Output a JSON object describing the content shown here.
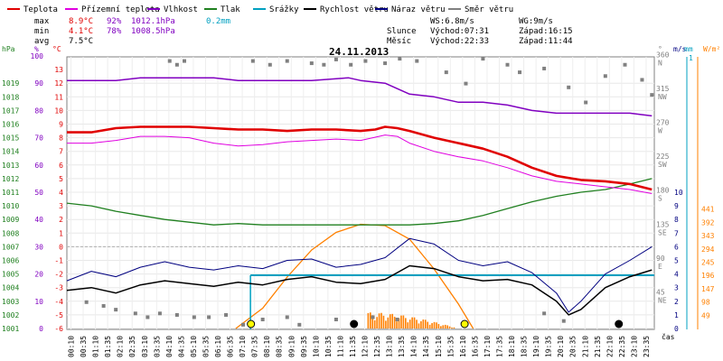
{
  "chart_data": {
    "type": "line",
    "title": "24.11.2013",
    "legend": [
      {
        "label": "Teplota",
        "color": "#e00000"
      },
      {
        "label": "Přízemní teplota",
        "color": "#e000e0"
      },
      {
        "label": "Vlhkost",
        "color": "#8000c0"
      },
      {
        "label": "Tlak",
        "color": "#208020"
      },
      {
        "label": "Srážky",
        "color": "#00a0c0"
      },
      {
        "label": "Rychlost větru",
        "color": "#000000"
      },
      {
        "label": "Náraz větru",
        "color": "#000080"
      },
      {
        "label": "Směr větru",
        "color": "#808080"
      }
    ],
    "stats": {
      "max": {
        "label": "max",
        "temp": "8.9°C",
        "hum": "92%",
        "press": "1012.1hPa",
        "rain": "0.2mm"
      },
      "min": {
        "label": "min",
        "temp": "4.1°C",
        "hum": "78%",
        "press": "1008.5hPa"
      },
      "avg": {
        "label": "avg",
        "temp": "7.5°C"
      }
    },
    "info": {
      "ws": "WS:6.8m/s",
      "wg": "WG:9m/s",
      "sun_label": "Slunce",
      "sunrise": "Východ:07:31",
      "sunset": "Západ:16:15",
      "moon_label": "Měsíc",
      "moonrise": "Východ:22:33",
      "moonset": "Západ:11:44"
    },
    "axes": {
      "hpa_unit": "hPa",
      "hpa_ticks": [
        1019,
        1018,
        1017,
        1016,
        1015,
        1014,
        1013,
        1012,
        1011,
        1010,
        1009,
        1008,
        1007,
        1006,
        1005,
        1004,
        1003,
        1002,
        1001
      ],
      "hum_unit": "%",
      "hum_ticks": [
        100,
        90,
        80,
        70,
        60,
        50,
        40,
        30,
        20,
        10,
        0
      ],
      "temp_unit": "°C",
      "temp_ticks": [
        13,
        12,
        11,
        10,
        9,
        8,
        7,
        6,
        5,
        4,
        3,
        2,
        1,
        0,
        -1,
        -2,
        -3,
        -4,
        -5,
        -6
      ],
      "dir_unit": "°",
      "dir_ticks": [
        {
          "deg": "360",
          "dir": "N"
        },
        {
          "deg": "315",
          "dir": "NW"
        },
        {
          "deg": "270",
          "dir": "W"
        },
        {
          "deg": "225",
          "dir": "SW"
        },
        {
          "deg": "180",
          "dir": "S"
        },
        {
          "deg": "135",
          "dir": "SE"
        },
        {
          "deg": "90",
          "dir": "E"
        },
        {
          "deg": "45",
          "dir": "NE"
        }
      ],
      "ms_unit": "m/s",
      "ms_ticks": [
        10,
        9,
        8,
        7,
        6,
        5,
        4,
        3,
        2,
        1,
        0
      ],
      "mm_unit": "mm",
      "mm_ticks": [
        "1"
      ],
      "wm2_unit": "W/m²",
      "wm2_ticks": [
        441,
        392,
        343,
        294,
        245,
        196,
        147,
        98,
        49
      ],
      "x_unit": "čas",
      "x_ticks": [
        "00:10",
        "00:35",
        "01:10",
        "01:35",
        "02:10",
        "02:35",
        "03:10",
        "03:35",
        "04:10",
        "04:35",
        "05:10",
        "05:35",
        "06:10",
        "06:35",
        "07:10",
        "07:35",
        "08:10",
        "08:35",
        "09:10",
        "09:35",
        "10:10",
        "10:35",
        "11:10",
        "11:35",
        "12:10",
        "12:35",
        "13:10",
        "13:35",
        "14:10",
        "14:35",
        "15:10",
        "15:35",
        "16:10",
        "16:35",
        "17:10",
        "17:35",
        "18:10",
        "18:35",
        "19:10",
        "19:35",
        "20:10",
        "20:35",
        "21:10",
        "21:35",
        "22:10",
        "22:35",
        "23:10",
        "23:35"
      ]
    },
    "series_pts": {
      "temperature": [
        [
          0,
          8.4
        ],
        [
          1,
          8.4
        ],
        [
          2,
          8.7
        ],
        [
          3,
          8.8
        ],
        [
          4,
          8.8
        ],
        [
          5,
          8.8
        ],
        [
          6,
          8.7
        ],
        [
          7,
          8.6
        ],
        [
          8,
          8.6
        ],
        [
          9,
          8.5
        ],
        [
          10,
          8.6
        ],
        [
          11,
          8.6
        ],
        [
          12,
          8.5
        ],
        [
          12.6,
          8.6
        ],
        [
          13,
          8.8
        ],
        [
          13.5,
          8.7
        ],
        [
          14,
          8.5
        ],
        [
          15,
          8.0
        ],
        [
          16,
          7.6
        ],
        [
          17,
          7.2
        ],
        [
          18,
          6.6
        ],
        [
          19,
          5.8
        ],
        [
          20,
          5.2
        ],
        [
          21,
          4.9
        ],
        [
          22,
          4.8
        ],
        [
          23,
          4.6
        ],
        [
          23.9,
          4.2
        ]
      ],
      "ground_temp": [
        [
          0,
          7.6
        ],
        [
          1,
          7.6
        ],
        [
          2,
          7.8
        ],
        [
          3,
          8.1
        ],
        [
          4,
          8.1
        ],
        [
          5,
          8.0
        ],
        [
          6,
          7.6
        ],
        [
          7,
          7.4
        ],
        [
          8,
          7.5
        ],
        [
          9,
          7.7
        ],
        [
          10,
          7.8
        ],
        [
          11,
          7.9
        ],
        [
          12,
          7.8
        ],
        [
          13,
          8.2
        ],
        [
          13.5,
          8.1
        ],
        [
          14,
          7.6
        ],
        [
          15,
          7.0
        ],
        [
          16,
          6.6
        ],
        [
          17,
          6.3
        ],
        [
          18,
          5.8
        ],
        [
          19,
          5.2
        ],
        [
          20,
          4.8
        ],
        [
          21,
          4.6
        ],
        [
          22,
          4.4
        ],
        [
          23,
          4.2
        ],
        [
          23.9,
          3.9
        ]
      ],
      "humidity": [
        [
          0,
          91
        ],
        [
          2,
          91
        ],
        [
          3,
          92
        ],
        [
          6,
          92
        ],
        [
          7,
          91
        ],
        [
          9,
          91
        ],
        [
          10,
          91
        ],
        [
          11.5,
          92
        ],
        [
          12,
          91
        ],
        [
          13,
          90
        ],
        [
          14,
          86
        ],
        [
          15,
          85
        ],
        [
          16,
          83
        ],
        [
          17,
          83
        ],
        [
          18,
          82
        ],
        [
          19,
          80
        ],
        [
          20,
          79
        ],
        [
          21,
          79
        ],
        [
          22,
          79
        ],
        [
          23,
          79
        ],
        [
          23.9,
          78
        ]
      ],
      "pressure": [
        [
          0,
          1010.2
        ],
        [
          1,
          1010.0
        ],
        [
          2,
          1009.6
        ],
        [
          3,
          1009.3
        ],
        [
          4,
          1009.0
        ],
        [
          5,
          1008.8
        ],
        [
          6,
          1008.6
        ],
        [
          7,
          1008.7
        ],
        [
          8,
          1008.6
        ],
        [
          9,
          1008.6
        ],
        [
          10,
          1008.6
        ],
        [
          11,
          1008.6
        ],
        [
          12,
          1008.6
        ],
        [
          13,
          1008.6
        ],
        [
          14,
          1008.6
        ],
        [
          15,
          1008.7
        ],
        [
          16,
          1008.9
        ],
        [
          17,
          1009.3
        ],
        [
          18,
          1009.8
        ],
        [
          19,
          1010.3
        ],
        [
          20,
          1010.7
        ],
        [
          21,
          1011.0
        ],
        [
          22,
          1011.2
        ],
        [
          23,
          1011.6
        ],
        [
          23.9,
          1012.0
        ]
      ],
      "rain_total": [
        [
          0,
          0
        ],
        [
          7.5,
          0
        ],
        [
          7.5,
          0.2
        ],
        [
          23.9,
          0.2
        ]
      ],
      "wind_speed": [
        [
          0,
          2.8
        ],
        [
          1,
          3.0
        ],
        [
          2,
          2.6
        ],
        [
          3,
          3.2
        ],
        [
          4,
          3.5
        ],
        [
          5,
          3.3
        ],
        [
          6,
          3.1
        ],
        [
          7,
          3.4
        ],
        [
          8,
          3.2
        ],
        [
          9,
          3.6
        ],
        [
          10,
          3.8
        ],
        [
          11,
          3.4
        ],
        [
          12,
          3.3
        ],
        [
          13,
          3.6
        ],
        [
          14,
          4.6
        ],
        [
          15,
          4.4
        ],
        [
          16,
          3.8
        ],
        [
          17,
          3.5
        ],
        [
          18,
          3.6
        ],
        [
          19,
          3.2
        ],
        [
          20,
          2.0
        ],
        [
          20.5,
          1.0
        ],
        [
          21,
          1.4
        ],
        [
          22,
          3.0
        ],
        [
          23,
          3.8
        ],
        [
          23.9,
          4.3
        ]
      ],
      "wind_gust": [
        [
          0,
          3.5
        ],
        [
          1,
          4.2
        ],
        [
          2,
          3.8
        ],
        [
          3,
          4.5
        ],
        [
          4,
          4.9
        ],
        [
          5,
          4.5
        ],
        [
          6,
          4.3
        ],
        [
          7,
          4.6
        ],
        [
          8,
          4.4
        ],
        [
          9,
          5.0
        ],
        [
          10,
          5.1
        ],
        [
          11,
          4.5
        ],
        [
          12,
          4.7
        ],
        [
          13,
          5.2
        ],
        [
          14,
          6.6
        ],
        [
          15,
          6.2
        ],
        [
          16,
          5.0
        ],
        [
          17,
          4.6
        ],
        [
          18,
          4.9
        ],
        [
          19,
          4.1
        ],
        [
          20,
          2.6
        ],
        [
          20.5,
          1.2
        ],
        [
          21,
          2.0
        ],
        [
          22,
          4.0
        ],
        [
          23,
          5.0
        ],
        [
          23.9,
          6.0
        ]
      ],
      "solar": [
        [
          6.9,
          0
        ],
        [
          8,
          75
        ],
        [
          9,
          190
        ],
        [
          10,
          290
        ],
        [
          11,
          355
        ],
        [
          12,
          385
        ],
        [
          13,
          380
        ],
        [
          14,
          330
        ],
        [
          15,
          220
        ],
        [
          16,
          90
        ],
        [
          16.6,
          0
        ]
      ]
    },
    "wind_dir": [
      {
        "x": 4.2,
        "deg": 355
      },
      {
        "x": 4.5,
        "deg": 350
      },
      {
        "x": 4.8,
        "deg": 355
      },
      {
        "x": 7.2,
        "deg": 5
      },
      {
        "x": 7.6,
        "deg": 355
      },
      {
        "x": 8.3,
        "deg": 350
      },
      {
        "x": 9.0,
        "deg": 355
      },
      {
        "x": 9.5,
        "deg": 5
      },
      {
        "x": 10.0,
        "deg": 352
      },
      {
        "x": 10.5,
        "deg": 350
      },
      {
        "x": 11.0,
        "deg": 357
      },
      {
        "x": 11.6,
        "deg": 350
      },
      {
        "x": 12.2,
        "deg": 355
      },
      {
        "x": 13.0,
        "deg": 352
      },
      {
        "x": 13.6,
        "deg": 358
      },
      {
        "x": 14.3,
        "deg": 355
      },
      {
        "x": 15.5,
        "deg": 340
      },
      {
        "x": 16.3,
        "deg": 325
      },
      {
        "x": 17.0,
        "deg": 358
      },
      {
        "x": 18.0,
        "deg": 350
      },
      {
        "x": 18.5,
        "deg": 340
      },
      {
        "x": 19.5,
        "deg": 345
      },
      {
        "x": 20.5,
        "deg": 320
      },
      {
        "x": 21.2,
        "deg": 300
      },
      {
        "x": 22.0,
        "deg": 335
      },
      {
        "x": 22.8,
        "deg": 350
      },
      {
        "x": 23.5,
        "deg": 330
      },
      {
        "x": 23.9,
        "deg": 310
      },
      {
        "x": 0.8,
        "deg": 35
      },
      {
        "x": 1.5,
        "deg": 30
      },
      {
        "x": 2.0,
        "deg": 25
      },
      {
        "x": 2.8,
        "deg": 20
      },
      {
        "x": 3.3,
        "deg": 15
      },
      {
        "x": 3.8,
        "deg": 20
      },
      {
        "x": 4.5,
        "deg": 18
      },
      {
        "x": 5.2,
        "deg": 15
      },
      {
        "x": 5.8,
        "deg": 15
      },
      {
        "x": 6.5,
        "deg": 18
      },
      {
        "x": 8.0,
        "deg": 12
      },
      {
        "x": 9.0,
        "deg": 15
      },
      {
        "x": 11.0,
        "deg": 12
      },
      {
        "x": 12.5,
        "deg": 15
      },
      {
        "x": 13.5,
        "deg": 12
      },
      {
        "x": 19.5,
        "deg": 20
      },
      {
        "x": 20.3,
        "deg": 10
      }
    ],
    "events": [
      {
        "kind": "sun",
        "x": 7.52,
        "label": ""
      },
      {
        "kind": "sun",
        "x": 16.25,
        "label": ""
      },
      {
        "kind": "moon",
        "x": 11.73,
        "label": ""
      },
      {
        "kind": "moon",
        "x": 22.55,
        "label": ""
      }
    ],
    "colors": {
      "temperature": "#e00000",
      "ground_temp": "#e000e0",
      "humidity": "#8000c0",
      "pressure": "#208020",
      "rain": "#00a0c0",
      "wind_speed": "#000000",
      "wind_gust": "#000080",
      "wind_dir": "#808080",
      "solar": "#ff8000"
    }
  }
}
